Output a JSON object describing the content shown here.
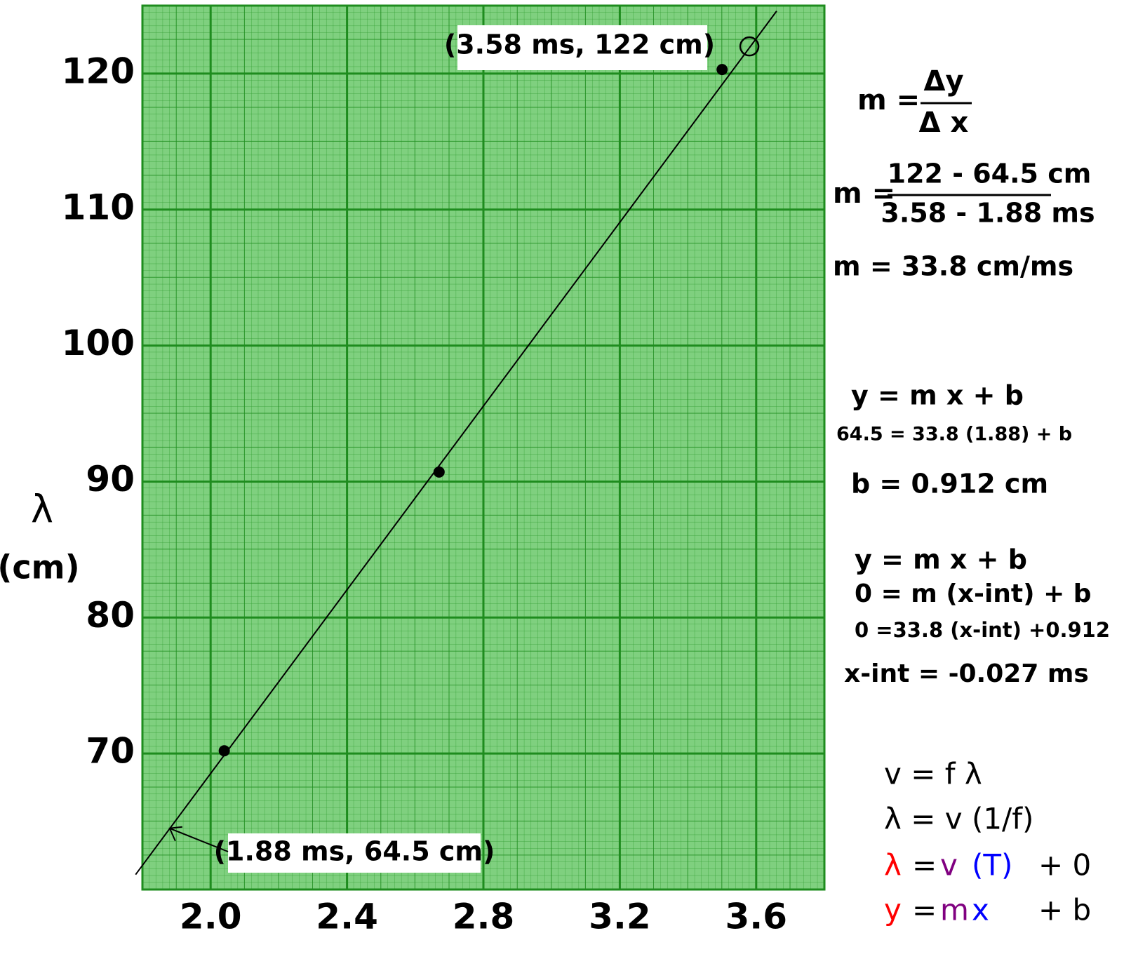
{
  "chart_data": {
    "type": "scatter",
    "x": [
      2.04,
      2.67,
      3.5
    ],
    "values": [
      70.2,
      90.7,
      120.3
    ],
    "color": "#000000",
    "ylabel": [
      "λ",
      "(cm)"
    ],
    "xlim": [
      1.8,
      3.8
    ],
    "ylim": [
      60,
      125
    ],
    "xticks": [
      {
        "value": 2.0,
        "label": "2.0"
      },
      2.4,
      2.8,
      3.2,
      3.6
    ],
    "yticks": [
      70,
      80,
      90,
      100,
      110,
      120
    ],
    "grid": true,
    "grid_color": "#1e8c1e",
    "fit_line": {
      "x": [
        1.78,
        3.66
      ],
      "values": [
        61.1,
        124.6
      ]
    },
    "open_point": {
      "x": 3.58,
      "value": 122
    },
    "annotations": [
      {
        "text": "(3.58 ms, 122 cm)"
      },
      {
        "text": "(1.88 ms, 64.5 cm)",
        "x": 1.88,
        "y": 64.5
      }
    ],
    "equations": [
      "m =",
      "Δy",
      "Δ x",
      "m =",
      "122 - 64.5  cm",
      "3.58 - 1.88 ms",
      "m =  33.8 cm/ms",
      "y  =  m     x  +   b",
      "64.5 = 33.8 (1.88) + b",
      "b = 0.912 cm",
      "y  =  m     x  +   b",
      "0  = m   (x-int)  + b",
      "0 =33.8 (x-int) +0.912",
      "x-int = -0.027 ms",
      "v = f λ",
      "λ = v (1/f)"
    ],
    "colored_equations": [
      [
        {
          "text": "λ",
          "color": "#ff0000"
        },
        {
          "text": "=",
          "color": "#000000"
        },
        {
          "text": "v",
          "color": "#800080"
        },
        {
          "text": "(T)",
          "color": "#0000ff"
        },
        {
          "text": "+ 0",
          "color": "#000000"
        }
      ],
      [
        {
          "text": "y",
          "color": "#ff0000"
        },
        {
          "text": "=",
          "color": "#000000"
        },
        {
          "text": "m",
          "color": "#800080"
        },
        {
          "text": "x",
          "color": "#0000ff"
        },
        {
          "text": "+ b",
          "color": "#000000"
        }
      ]
    ]
  }
}
